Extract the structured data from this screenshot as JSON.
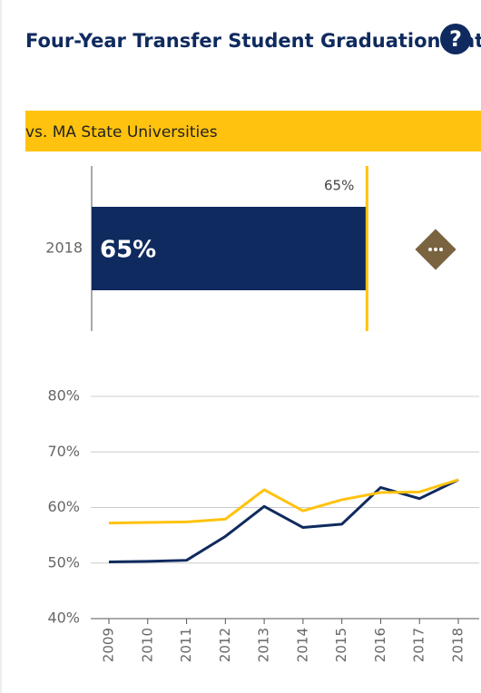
{
  "help_icon": "?",
  "chart_data": [
    {
      "type": "hbar",
      "title": "Four-Year Transfer Student Graduation Rate",
      "subtitle": "vs. MA State Universities",
      "categories": [
        "2018"
      ],
      "values": [
        65
      ],
      "value_labels": [
        "65%"
      ],
      "color": "#0f2a5e",
      "xlim": [
        0,
        66
      ],
      "reference": {
        "value": 65,
        "label": "65%",
        "color": "#ffc20e"
      }
    },
    {
      "type": "line",
      "categories": [
        "2009",
        "2010",
        "2011",
        "2012",
        "2013",
        "2014",
        "2015",
        "2016",
        "2017",
        "2018"
      ],
      "series": [
        {
          "color": "#0f2a5e",
          "values": [
            50.2,
            50.3,
            50.5,
            54.8,
            60.2,
            56.4,
            57.0,
            63.6,
            61.6,
            65.0
          ]
        },
        {
          "color": "#ffc20e",
          "values": [
            57.2,
            57.3,
            57.4,
            57.9,
            63.2,
            59.4,
            61.4,
            62.7,
            62.8,
            65.0
          ]
        }
      ],
      "ylim": [
        40,
        80
      ],
      "yticks": [
        {
          "value": 40,
          "label": "40%"
        },
        {
          "value": 50,
          "label": "50%"
        },
        {
          "value": 60,
          "label": "60%"
        },
        {
          "value": 70,
          "label": "70%"
        },
        {
          "value": 80,
          "label": "80%"
        }
      ],
      "grid": true
    }
  ]
}
